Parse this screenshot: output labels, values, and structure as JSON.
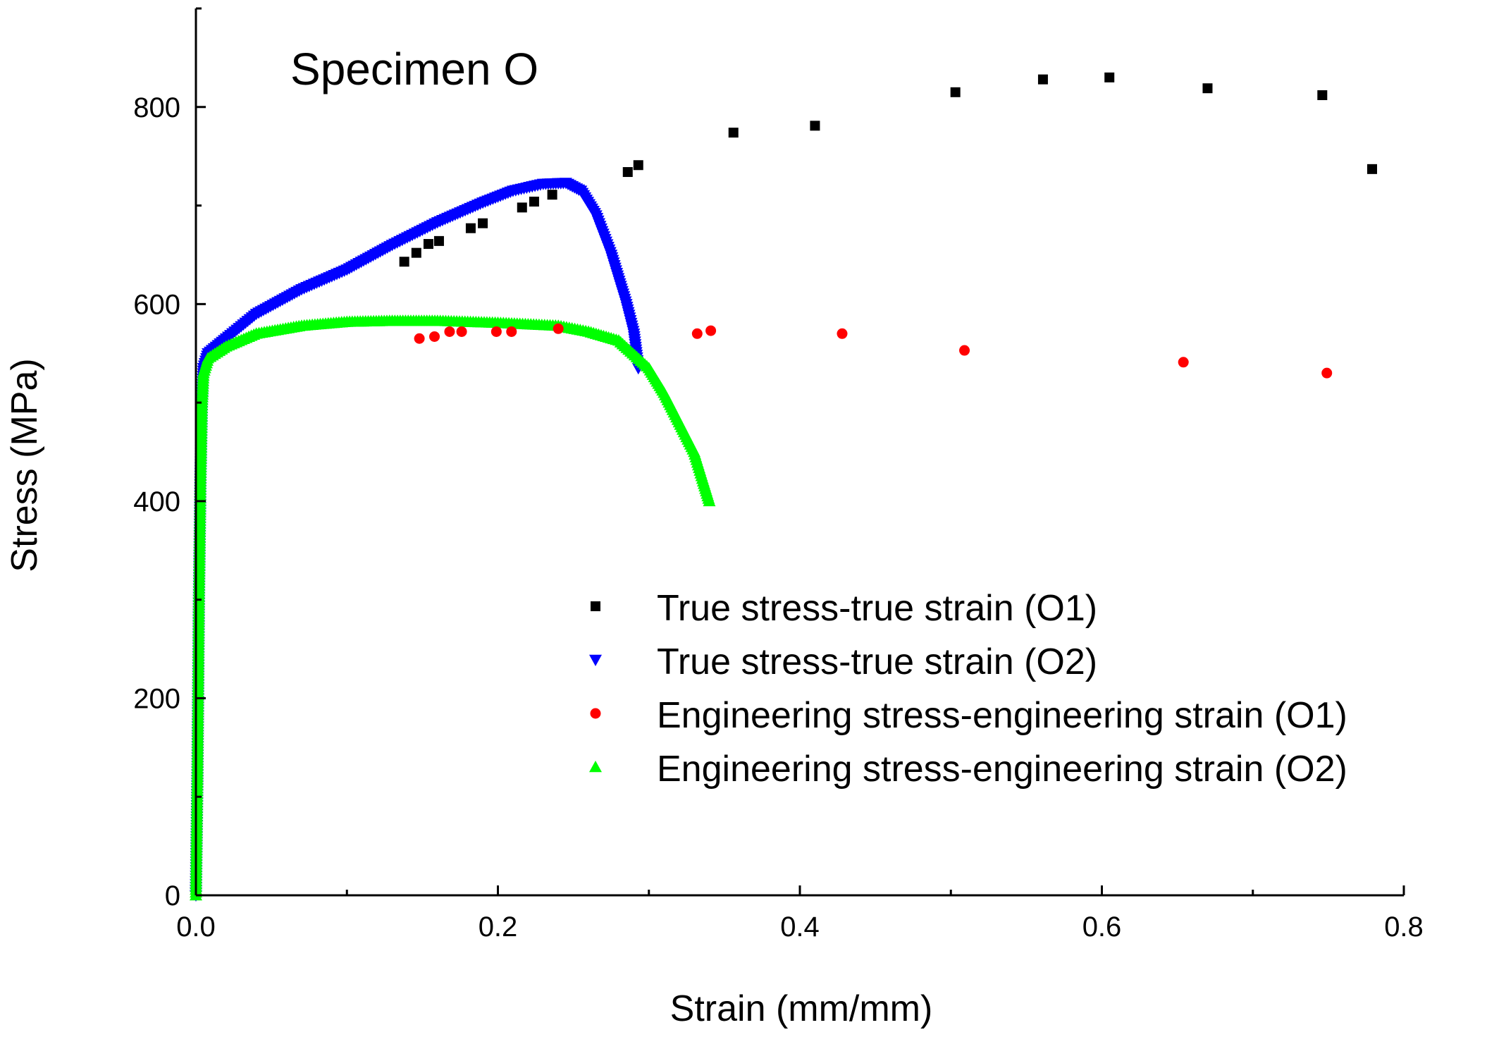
{
  "chart_data": {
    "type": "scatter",
    "title": "Specimen O",
    "xlabel": "Strain (mm/mm)",
    "ylabel": "Stress (MPa)",
    "xlim": [
      0.0,
      0.8
    ],
    "ylim": [
      0,
      900
    ],
    "x_ticks": [
      {
        "value": 0.0,
        "label": "0.0"
      },
      {
        "value": 0.2,
        "label": "0.2"
      },
      {
        "value": 0.4,
        "label": "0.4"
      },
      {
        "value": 0.6,
        "label": "0.6"
      },
      {
        "value": 0.8,
        "label": "0.8"
      }
    ],
    "y_ticks": [
      {
        "value": 0,
        "label": "0"
      },
      {
        "value": 200,
        "label": "200"
      },
      {
        "value": 400,
        "label": "400"
      },
      {
        "value": 600,
        "label": "600"
      },
      {
        "value": 800,
        "label": "800"
      }
    ],
    "legend_position": "right",
    "series": [
      {
        "name": "True stress-true strain (O1)",
        "marker": "square",
        "color": "#000000",
        "x": [
          0.138,
          0.146,
          0.154,
          0.161,
          0.182,
          0.19,
          0.216,
          0.224,
          0.236,
          0.286,
          0.293,
          0.356,
          0.41,
          0.503,
          0.561,
          0.605,
          0.67,
          0.746,
          0.779
        ],
        "y": [
          643,
          652,
          661,
          664,
          677,
          682,
          698,
          704,
          711,
          734,
          741,
          774,
          781,
          815,
          828,
          830,
          819,
          812,
          737
        ]
      },
      {
        "name": "True stress-true strain (O2)",
        "marker": "triangle-down",
        "color": "#0000ff",
        "curve": [
          [
            0.0,
            0
          ],
          [
            0.001,
            120
          ],
          [
            0.002,
            300
          ],
          [
            0.003,
            420
          ],
          [
            0.004,
            500
          ],
          [
            0.005,
            535
          ],
          [
            0.008,
            550
          ],
          [
            0.02,
            565
          ],
          [
            0.04,
            590
          ],
          [
            0.07,
            615
          ],
          [
            0.1,
            635
          ],
          [
            0.13,
            660
          ],
          [
            0.16,
            683
          ],
          [
            0.19,
            703
          ],
          [
            0.21,
            715
          ],
          [
            0.23,
            722
          ],
          [
            0.245,
            723
          ],
          [
            0.255,
            715
          ],
          [
            0.265,
            690
          ],
          [
            0.275,
            650
          ],
          [
            0.285,
            600
          ],
          [
            0.29,
            570
          ],
          [
            0.293,
            535
          ]
        ]
      },
      {
        "name": "Engineering stress-engineering strain (O1)",
        "marker": "circle",
        "color": "#ff0000",
        "x": [
          0.148,
          0.158,
          0.168,
          0.176,
          0.199,
          0.209,
          0.24,
          0.332,
          0.341,
          0.428,
          0.509,
          0.654,
          0.749
        ],
        "y": [
          565,
          567,
          572,
          572,
          572,
          572,
          575,
          570,
          573,
          570,
          553,
          541,
          530
        ]
      },
      {
        "name": "Engineering stress-engineering strain (O2)",
        "marker": "triangle-up",
        "color": "#00ff00",
        "curve": [
          [
            0.0,
            0
          ],
          [
            0.001,
            120
          ],
          [
            0.002,
            300
          ],
          [
            0.003,
            420
          ],
          [
            0.004,
            500
          ],
          [
            0.005,
            530
          ],
          [
            0.008,
            545
          ],
          [
            0.02,
            557
          ],
          [
            0.04,
            570
          ],
          [
            0.07,
            578
          ],
          [
            0.1,
            582
          ],
          [
            0.13,
            583
          ],
          [
            0.16,
            583
          ],
          [
            0.2,
            581
          ],
          [
            0.24,
            578
          ],
          [
            0.26,
            572
          ],
          [
            0.28,
            563
          ],
          [
            0.3,
            535
          ],
          [
            0.31,
            510
          ],
          [
            0.32,
            480
          ],
          [
            0.33,
            450
          ],
          [
            0.336,
            420
          ],
          [
            0.34,
            400
          ]
        ]
      }
    ]
  }
}
